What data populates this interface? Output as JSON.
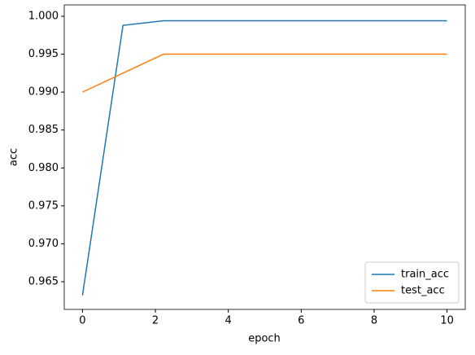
{
  "chart_data": {
    "type": "line",
    "x": [
      0,
      1.111,
      2.222,
      3.333,
      4.444,
      5.556,
      6.667,
      7.778,
      8.889,
      10
    ],
    "series": [
      {
        "name": "train_acc",
        "color": "#1f77b4",
        "values": [
          0.9632,
          0.9988,
          0.9994,
          0.9994,
          0.9994,
          0.9994,
          0.9994,
          0.9994,
          0.9994,
          0.9994
        ]
      },
      {
        "name": "test_acc",
        "color": "#ff7f0e",
        "values": [
          0.99,
          0.9925,
          0.995,
          0.995,
          0.995,
          0.995,
          0.995,
          0.995,
          0.995,
          0.995
        ]
      }
    ],
    "x_label": "epoch",
    "y_label": "acc",
    "xlim": [
      -0.5,
      10.5
    ],
    "xticks": [
      0,
      2,
      4,
      6,
      8,
      10
    ],
    "ylim": [
      0.96135,
      1.0015
    ],
    "yticks": [
      0.965,
      {
        "value": 0.97,
        "label": "0.970"
      },
      0.975,
      {
        "value": 0.98,
        "label": "0.980"
      },
      0.985,
      {
        "value": 0.99,
        "label": "0.990"
      },
      0.995,
      {
        "value": 1,
        "label": "1.000"
      }
    ],
    "legend": "lower right",
    "grid": false
  }
}
